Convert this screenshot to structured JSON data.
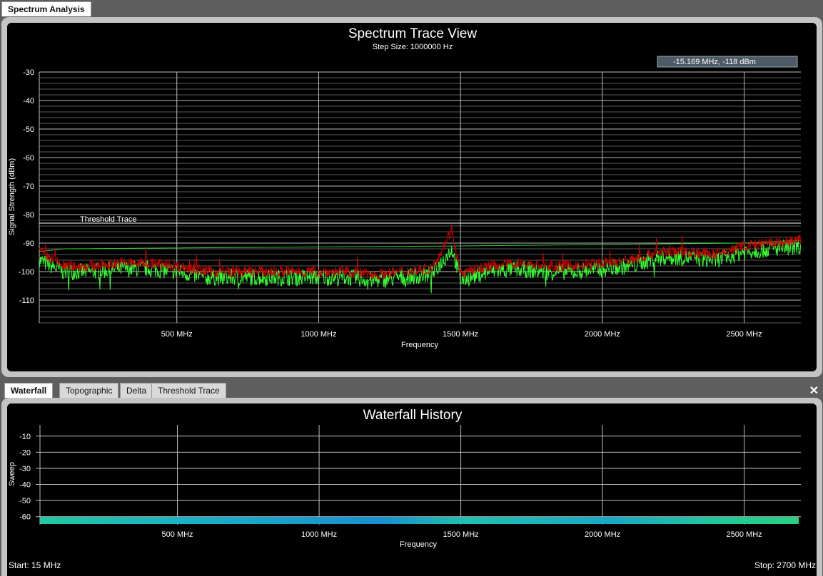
{
  "top_tabs": [
    {
      "label": "Spectrum Analysis",
      "active": true
    }
  ],
  "spectrum": {
    "title": "Spectrum Trace View",
    "subtitle": "Step Size: 1000000 Hz",
    "cursor_readout": "-15.169 MHz,   -118 dBm",
    "threshold_label": "Threshold Trace",
    "ylabel": "Signal Strength (dBm)",
    "xlabel": "Frequency",
    "y_ticks": [
      "-30",
      "-40",
      "-50",
      "-60",
      "-70",
      "-80",
      "-90",
      "-100",
      "-110"
    ],
    "x_ticks": [
      "500 MHz",
      "1000 MHz",
      "1500 MHz",
      "2000 MHz",
      "2500 MHz"
    ]
  },
  "bottom_tabs": [
    {
      "label": "Waterfall",
      "active": true
    },
    {
      "label": "Topographic",
      "active": false
    },
    {
      "label": "Delta",
      "active": false
    },
    {
      "label": "Threshold Trace",
      "active": false
    }
  ],
  "close_glyph": "✕",
  "waterfall": {
    "title": "Waterfall History",
    "ylabel": "Sweep",
    "xlabel": "Frequency",
    "y_ticks": [
      "-60",
      "-50",
      "-40",
      "-30",
      "-20",
      "-10"
    ],
    "x_ticks": [
      "500 MHz",
      "1000 MHz",
      "1500 MHz",
      "2000 MHz",
      "2500 MHz"
    ]
  },
  "footer": {
    "start": "Start: 15 MHz",
    "stop": "Stop: 2700 MHz"
  },
  "chart_data": [
    {
      "type": "line",
      "title": "Spectrum Trace View",
      "subtitle": "Step Size: 1000000 Hz",
      "xlabel": "Frequency",
      "ylabel": "Signal Strength (dBm)",
      "xlim": [
        15,
        2700
      ],
      "ylim": [
        -118,
        -30
      ],
      "x_ticks": [
        500,
        1000,
        1500,
        2000,
        2500
      ],
      "y_ticks": [
        -30,
        -40,
        -50,
        -60,
        -70,
        -80,
        -90,
        -100,
        -110
      ],
      "threshold_dbm": -83,
      "series": [
        {
          "color": "#cc0000",
          "x": [
            15,
            100,
            200,
            300,
            400,
            500,
            600,
            700,
            800,
            900,
            1000,
            1100,
            1200,
            1300,
            1400,
            1470,
            1500,
            1600,
            1700,
            1800,
            1900,
            2000,
            2100,
            2200,
            2300,
            2400,
            2500,
            2600,
            2700
          ],
          "values": [
            -93,
            -98,
            -98,
            -97,
            -97,
            -98,
            -100,
            -100,
            -100,
            -100,
            -100,
            -100,
            -101,
            -100,
            -99,
            -85,
            -101,
            -98,
            -97,
            -98,
            -98,
            -97,
            -96,
            -93,
            -93,
            -94,
            -91,
            -90,
            -89
          ]
        },
        {
          "color": "#33ff33",
          "x": [
            15,
            100,
            200,
            300,
            400,
            500,
            600,
            700,
            800,
            900,
            1000,
            1100,
            1200,
            1300,
            1400,
            1470,
            1500,
            1600,
            1700,
            1800,
            1900,
            2000,
            2100,
            2200,
            2300,
            2400,
            2500,
            2600,
            2700
          ],
          "values": [
            -96,
            -100,
            -100,
            -99,
            -99,
            -100,
            -102,
            -102,
            -102,
            -102,
            -102,
            -102,
            -103,
            -102,
            -101,
            -92,
            -103,
            -100,
            -99,
            -100,
            -100,
            -99,
            -98,
            -95,
            -95,
            -96,
            -93,
            -92,
            -91
          ]
        },
        {
          "color": "#33cc33",
          "x": [
            15,
            100,
            1500,
            2500,
            2700
          ],
          "values": [
            -93,
            -92,
            -91,
            -90,
            -89
          ]
        }
      ]
    },
    {
      "type": "heatmap",
      "title": "Waterfall History",
      "xlabel": "Frequency",
      "ylabel": "Sweep",
      "xlim": [
        15,
        2700
      ],
      "ylim": [
        -65,
        -3
      ],
      "x_ticks": [
        500,
        1000,
        1500,
        2000,
        2500
      ],
      "y_ticks": [
        -60,
        -50,
        -40,
        -30,
        -20,
        -10
      ],
      "rows": 1
    }
  ]
}
